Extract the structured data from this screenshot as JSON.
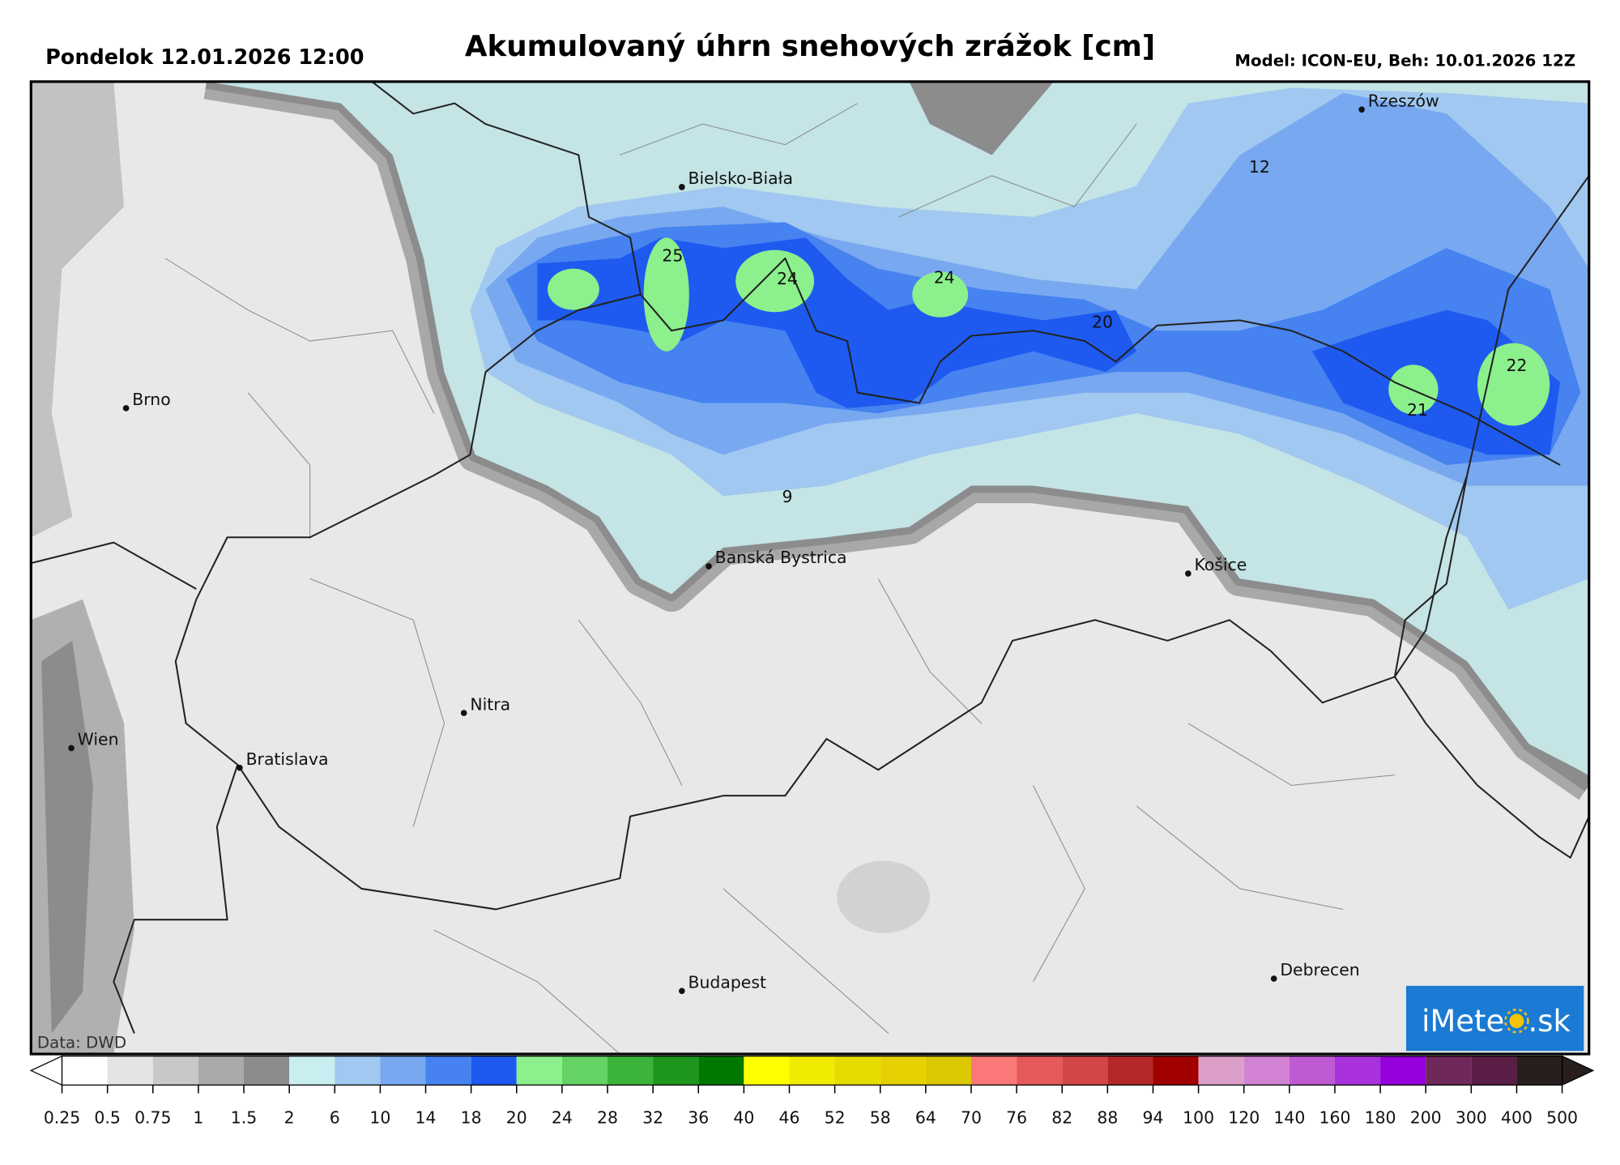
{
  "header": {
    "date": "Pondelok 12.01.2026 12:00",
    "title": "Akumulovaný úhrn snehových zrážok [cm]",
    "model": "Model: ICON-EU, Beh: 10.01.2026 12Z"
  },
  "cities": [
    "Rzeszów",
    "Bielsko-Biała",
    "Brno",
    "Banská Bystrica",
    "Košice",
    "Nitra",
    "Wien",
    "Bratislava",
    "Budapest",
    "Debrecen"
  ],
  "map_values": [
    12,
    25,
    24,
    24,
    20,
    22,
    21,
    9
  ],
  "credit": "Data: DWD",
  "logo": {
    "left": "iMete",
    "right": ".sk"
  },
  "colorbar": {
    "ticks": [
      0.25,
      0.5,
      0.75,
      1,
      1.5,
      2,
      6,
      10,
      14,
      18,
      20,
      24,
      28,
      32,
      36,
      40,
      46,
      52,
      58,
      64,
      70,
      76,
      82,
      88,
      94,
      100,
      120,
      140,
      160,
      180,
      200,
      300,
      400,
      500
    ],
    "colors": [
      "#ffffff",
      "#e4e4e4",
      "#c8c8c8",
      "#aaaaaa",
      "#8c8c8c",
      "#c8eef0",
      "#a0c8f0",
      "#78a8f0",
      "#4682f0",
      "#1e5af0",
      "#8cf08c",
      "#64d264",
      "#3cb43c",
      "#1e961e",
      "#007800",
      "#ffff00",
      "#f0eb00",
      "#e6dc00",
      "#e6d200",
      "#dcc800",
      "#fa7878",
      "#e65a5a",
      "#d24646",
      "#b42828",
      "#a00000",
      "#dca0c8",
      "#d282d2",
      "#be5ad2",
      "#aa32dc",
      "#9600dc",
      "#6e285a",
      "#5a1e46",
      "#281e1e"
    ]
  }
}
